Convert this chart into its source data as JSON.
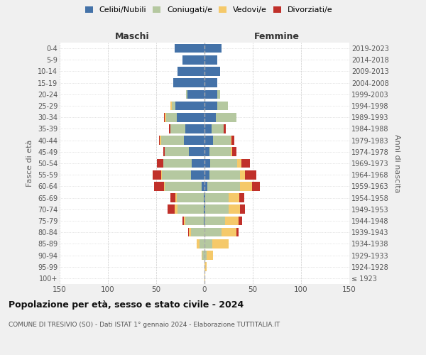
{
  "age_groups": [
    "100+",
    "95-99",
    "90-94",
    "85-89",
    "80-84",
    "75-79",
    "70-74",
    "65-69",
    "60-64",
    "55-59",
    "50-54",
    "45-49",
    "40-44",
    "35-39",
    "30-34",
    "25-29",
    "20-24",
    "15-19",
    "10-14",
    "5-9",
    "0-4"
  ],
  "birth_years": [
    "≤ 1923",
    "1924-1928",
    "1929-1933",
    "1934-1938",
    "1939-1943",
    "1944-1948",
    "1949-1953",
    "1954-1958",
    "1959-1963",
    "1964-1968",
    "1969-1973",
    "1974-1978",
    "1979-1983",
    "1984-1988",
    "1989-1993",
    "1994-1998",
    "1999-2003",
    "2004-2008",
    "2009-2013",
    "2014-2018",
    "2019-2023"
  ],
  "maschi": {
    "celibi": [
      0,
      0,
      0,
      0,
      0,
      1,
      1,
      1,
      3,
      14,
      13,
      16,
      21,
      20,
      29,
      30,
      18,
      32,
      28,
      23,
      31
    ],
    "coniugati": [
      0,
      0,
      2,
      5,
      14,
      19,
      27,
      28,
      38,
      30,
      30,
      25,
      24,
      15,
      11,
      4,
      1,
      0,
      0,
      0,
      0
    ],
    "vedovi": [
      0,
      0,
      1,
      3,
      2,
      1,
      3,
      1,
      1,
      1,
      0,
      0,
      1,
      0,
      1,
      1,
      0,
      0,
      0,
      0,
      0
    ],
    "divorziati": [
      0,
      0,
      0,
      0,
      1,
      2,
      7,
      5,
      10,
      9,
      6,
      2,
      1,
      2,
      1,
      0,
      0,
      0,
      0,
      0,
      0
    ]
  },
  "femmine": {
    "nubili": [
      0,
      0,
      0,
      0,
      0,
      0,
      1,
      1,
      3,
      5,
      6,
      5,
      9,
      7,
      12,
      13,
      13,
      13,
      16,
      13,
      18
    ],
    "coniugate": [
      0,
      0,
      2,
      8,
      18,
      21,
      24,
      24,
      34,
      32,
      28,
      22,
      18,
      13,
      21,
      11,
      3,
      0,
      0,
      0,
      0
    ],
    "vedove": [
      1,
      2,
      7,
      17,
      15,
      14,
      12,
      11,
      12,
      5,
      4,
      2,
      1,
      0,
      0,
      0,
      0,
      0,
      0,
      0,
      0
    ],
    "divorziate": [
      0,
      0,
      0,
      0,
      2,
      4,
      5,
      5,
      8,
      12,
      9,
      4,
      3,
      2,
      0,
      0,
      0,
      0,
      0,
      0,
      0
    ]
  },
  "colors": {
    "celibi": "#4472a8",
    "coniugati": "#b5c8a0",
    "vedovi": "#f5c96a",
    "divorziati": "#c0302a"
  },
  "xlim": 150,
  "title": "Popolazione per età, sesso e stato civile - 2024",
  "subtitle": "COMUNE DI TRESIVIO (SO) - Dati ISTAT 1° gennaio 2024 - Elaborazione TUTTITALIA.IT",
  "ylabel_left": "Fasce di età",
  "ylabel_right": "Anni di nascita",
  "xlabel_maschi": "Maschi",
  "xlabel_femmine": "Femmine",
  "legend_labels": [
    "Celibi/Nubili",
    "Coniugati/e",
    "Vedovi/e",
    "Divorziati/e"
  ],
  "bg_color": "#f0f0f0",
  "plot_bg": "#ffffff"
}
